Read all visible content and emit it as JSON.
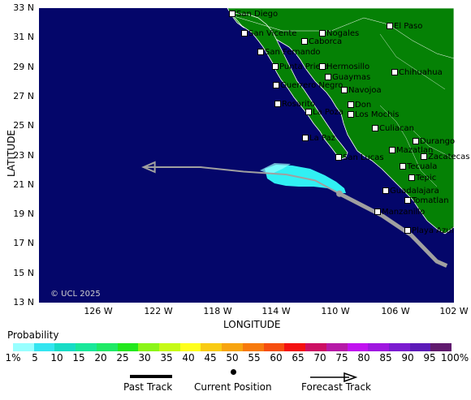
{
  "axes": {
    "x_title": "LONGITUDE",
    "y_title": "LATITUDE",
    "y_ticks": [
      "33 N",
      "31 N",
      "29 N",
      "27 N",
      "25 N",
      "23 N",
      "21 N",
      "19 N",
      "17 N",
      "15 N",
      "13 N"
    ],
    "x_ticks": [
      "126 W",
      "122 W",
      "118 W",
      "114 W",
      "110 W",
      "106 W",
      "102 W"
    ]
  },
  "colors": {
    "ocean": "#04066a",
    "land": "#058105",
    "track": "#a0a0a0",
    "probability_area": "#31f0f3"
  },
  "cities": [
    "San Diego",
    "El Paso",
    "San Vicente",
    "Nogales",
    "Caborca",
    "San Fernando",
    "Punta Prieta",
    "Hermosillo",
    "Chihuahua",
    "Guaymas",
    "Guerrero Negro",
    "Navojoa",
    "Rosarito",
    "Don",
    "La Poza",
    "Los Mochis",
    "Culiacan",
    "La Paz",
    "Durango",
    "Mazatlan",
    "San Lucas",
    "Zacatecas",
    "Tecuala",
    "Tepic",
    "Guadalajara",
    "Tomatlan",
    "Manzanillo",
    "Playa Azul"
  ],
  "copyright": "© UCL 2025",
  "legend": {
    "title": "Probability",
    "labels": [
      "1%",
      "5",
      "10",
      "15",
      "20",
      "25",
      "30",
      "35",
      "40",
      "45",
      "50",
      "55",
      "60",
      "65",
      "70",
      "75",
      "80",
      "85",
      "90",
      "95",
      "100%"
    ],
    "colors": [
      "#98ffff",
      "#33e5f0",
      "#17dcc6",
      "#19e89a",
      "#1fea66",
      "#23e81d",
      "#8bf518",
      "#c6fa16",
      "#ffff1d",
      "#f9cb13",
      "#f7a40f",
      "#f77a0d",
      "#f64e0f",
      "#f41111",
      "#cc0f63",
      "#b619a7",
      "#c112f0",
      "#9f17e0",
      "#7b1bd0",
      "#5c1ab8",
      "#601a6e"
    ]
  },
  "key": {
    "past": "Past Track",
    "current": "Current Position",
    "forecast": "Forecast Track"
  },
  "storm": {
    "current_position": {
      "lat": 20.4,
      "lon": -109.3
    },
    "past_track": [
      {
        "lat": 15.5,
        "lon": -101.8
      },
      {
        "lat": 15.8,
        "lon": -102.5
      },
      {
        "lat": 17.6,
        "lon": -104.3
      },
      {
        "lat": 18.9,
        "lon": -106.3
      },
      {
        "lat": 20.4,
        "lon": -109.3
      }
    ],
    "forecast_track": [
      {
        "lat": 20.4,
        "lon": -109.3
      },
      {
        "lat": 21.3,
        "lon": -111.0
      },
      {
        "lat": 21.7,
        "lon": -113.0
      },
      {
        "lat": 21.9,
        "lon": -116.0
      },
      {
        "lat": 22.2,
        "lon": -119.0
      },
      {
        "lat": 22.2,
        "lon": -123.0
      }
    ]
  }
}
